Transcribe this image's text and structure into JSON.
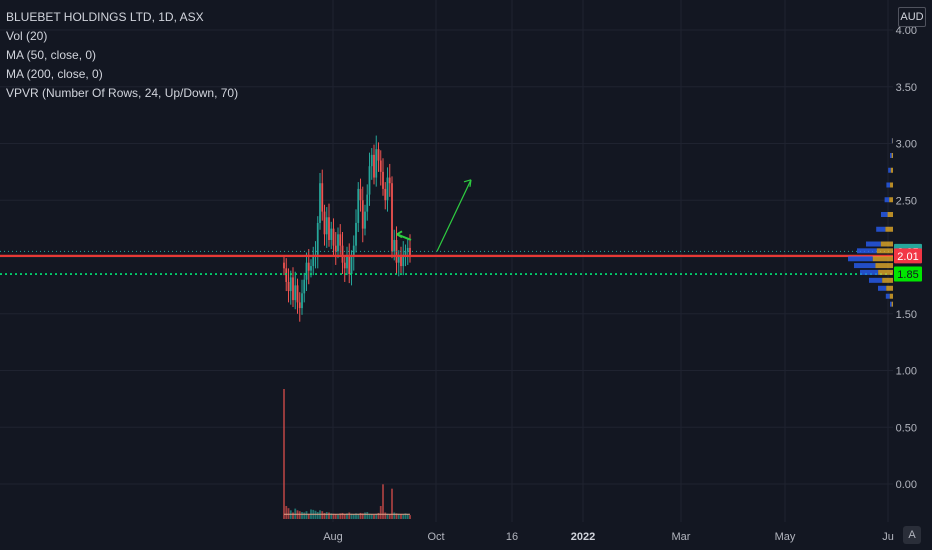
{
  "legend": {
    "title": "BLUEBET HOLDINGS LTD, 1D, ASX",
    "vol": "Vol (20)",
    "ma50": "MA (50, close, 0)",
    "ma200": "MA (200, close, 0)",
    "vpvr": "VPVR (Number Of Rows, 24, Up/Down, 70)"
  },
  "currency": "AUD",
  "auto_label": "A",
  "colors": {
    "background": "#131722",
    "grid": "#1f2330",
    "up": "#26a69a",
    "down": "#ef5350",
    "red_line": "#e53935",
    "green_dotted": "#00e676",
    "arrow": "#2ecc40",
    "badge_teal": "#26a69a",
    "badge_red": "#f23645",
    "badge_green": "#00e600"
  },
  "chart_data": {
    "type": "candlestick",
    "y_axis": {
      "ticks": [
        "4.00",
        "3.50",
        "3.00",
        "2.50",
        "2.00",
        "1.50",
        "1.00",
        "0.50",
        "0.00"
      ],
      "range": [
        -0.3,
        4.0
      ]
    },
    "x_axis": {
      "ticks": [
        "Aug",
        "Oct",
        "16",
        "2022",
        "Mar",
        "May",
        "Ju"
      ]
    },
    "price_badges": [
      {
        "value": 2.05,
        "label": "2.05",
        "color": "#26a69a"
      },
      {
        "value": 2.01,
        "label": "2.01",
        "color": "#f23645"
      },
      {
        "value": 1.85,
        "label": "1.85",
        "color": "#00e600"
      }
    ],
    "horizontal_lines": [
      {
        "price": 2.01,
        "style": "solid",
        "color": "#e53935"
      },
      {
        "price": 1.85,
        "style": "dotted",
        "color": "#00e676"
      },
      {
        "price": 2.05,
        "style": "dotted-thin",
        "color": "#26a69a"
      }
    ],
    "closes": [
      1.9,
      1.78,
      1.7,
      1.82,
      1.62,
      1.75,
      1.6,
      1.55,
      1.68,
      1.8,
      1.95,
      1.88,
      1.92,
      2.0,
      2.02,
      2.3,
      2.65,
      2.4,
      2.2,
      2.35,
      2.15,
      2.25,
      2.1,
      2.05,
      2.2,
      2.1,
      1.95,
      1.9,
      2.0,
      1.85,
      2.0,
      2.1,
      2.3,
      2.6,
      2.5,
      2.25,
      2.4,
      2.55,
      2.8,
      2.9,
      2.7,
      2.95,
      2.85,
      2.75,
      2.6,
      2.5,
      2.7,
      2.65,
      2.05,
      2.15,
      1.95,
      2.0,
      1.92,
      2.02,
      2.05,
      2.08,
      2.01
    ],
    "volumes": [
      3000,
      300,
      250,
      200,
      150,
      240,
      200,
      180,
      160,
      150,
      180,
      120,
      220,
      210,
      190,
      160,
      200,
      180,
      140,
      160,
      150,
      130,
      120,
      110,
      100,
      130,
      140,
      120,
      130,
      150,
      120,
      110,
      130,
      120,
      140,
      130,
      150,
      160,
      120,
      110,
      100,
      120,
      140,
      300,
      800,
      150,
      120,
      110,
      700,
      150,
      130,
      120,
      110,
      100,
      130,
      110,
      90
    ],
    "volume_ma": 110,
    "vpvr_profile": [
      {
        "price": 3.02,
        "vol": 2
      },
      {
        "price": 2.89,
        "vol": 5
      },
      {
        "price": 2.76,
        "vol": 8
      },
      {
        "price": 2.63,
        "vol": 11
      },
      {
        "price": 2.5,
        "vol": 14
      },
      {
        "price": 2.37,
        "vol": 20
      },
      {
        "price": 2.24,
        "vol": 28
      },
      {
        "price": 2.11,
        "vol": 45
      },
      {
        "price": 2.05,
        "vol": 60
      },
      {
        "price": 1.98,
        "vol": 75
      },
      {
        "price": 1.92,
        "vol": 65
      },
      {
        "price": 1.86,
        "vol": 55
      },
      {
        "price": 1.79,
        "vol": 40
      },
      {
        "price": 1.72,
        "vol": 25
      },
      {
        "price": 1.65,
        "vol": 12
      },
      {
        "price": 1.58,
        "vol": 5
      }
    ]
  }
}
